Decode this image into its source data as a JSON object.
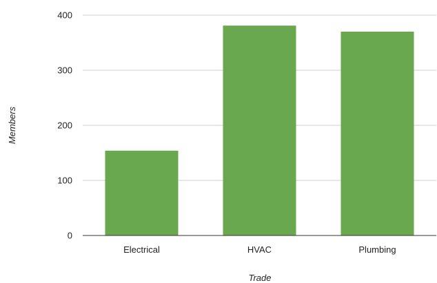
{
  "chart_data": {
    "type": "bar",
    "categories": [
      "Electrical",
      "HVAC",
      "Plumbing"
    ],
    "values": [
      154,
      381,
      370
    ],
    "title": "",
    "xlabel": "Trade",
    "ylabel": "Members",
    "ylim": [
      0,
      400
    ],
    "yticks": [
      "0",
      "100",
      "200",
      "300",
      "400"
    ],
    "grid": true,
    "legend": "none",
    "colors": {
      "bar": "#6aa84f",
      "grid": "#cccccc",
      "axis": "#333333"
    }
  }
}
